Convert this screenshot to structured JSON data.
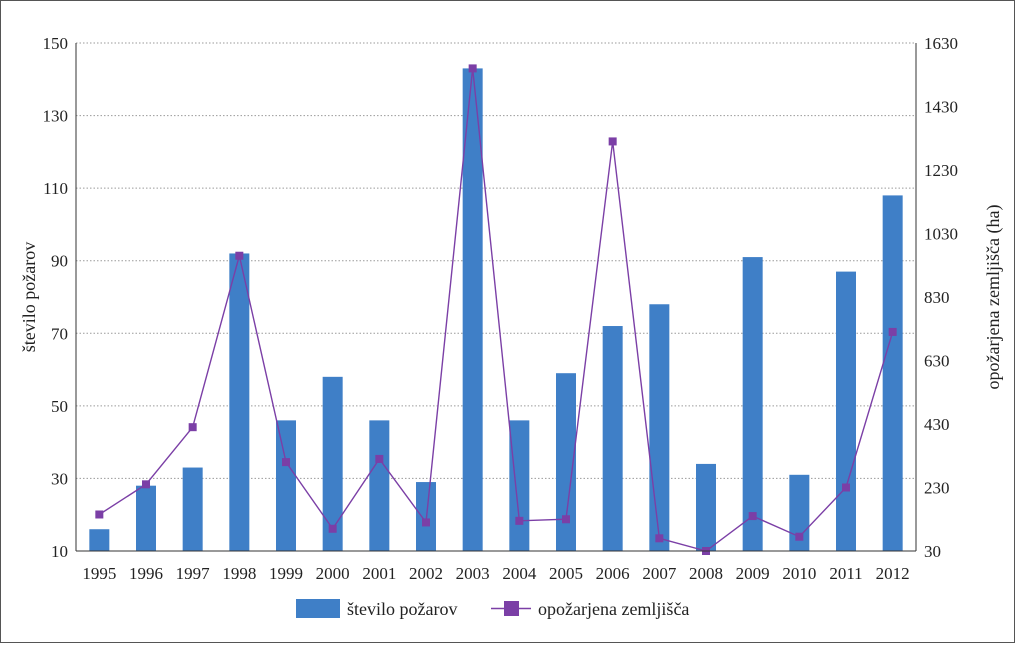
{
  "chart_data": {
    "type": "bar",
    "categories": [
      "1995",
      "1996",
      "1997",
      "1998",
      "1999",
      "2000",
      "2001",
      "2002",
      "2003",
      "2004",
      "2005",
      "2006",
      "2007",
      "2008",
      "2009",
      "2010",
      "2011",
      "2012"
    ],
    "series": [
      {
        "name": "število požarov",
        "type": "bar",
        "axis": "left",
        "color": "#3f7fc7",
        "values": [
          16,
          28,
          33,
          92,
          46,
          58,
          46,
          29,
          143,
          46,
          59,
          72,
          78,
          34,
          91,
          31,
          87,
          108
        ]
      },
      {
        "name": "opožarjena zemljišča",
        "type": "line",
        "axis": "right",
        "color": "#7b3fa6",
        "values": [
          145,
          240,
          420,
          960,
          310,
          100,
          320,
          120,
          1550,
          125,
          130,
          1320,
          70,
          30,
          140,
          75,
          230,
          720
        ]
      }
    ],
    "ylabel": "število požarov",
    "y2label": "opožarjena zemljišča (ha)",
    "ylim": [
      10,
      150
    ],
    "yticks": [
      10,
      30,
      50,
      70,
      90,
      110,
      130,
      150
    ],
    "y2lim": [
      30,
      1630
    ],
    "y2ticks": [
      30,
      230,
      430,
      630,
      830,
      1030,
      1230,
      1430,
      1630
    ],
    "grid": "horizontal dotted",
    "legend_position": "bottom"
  }
}
